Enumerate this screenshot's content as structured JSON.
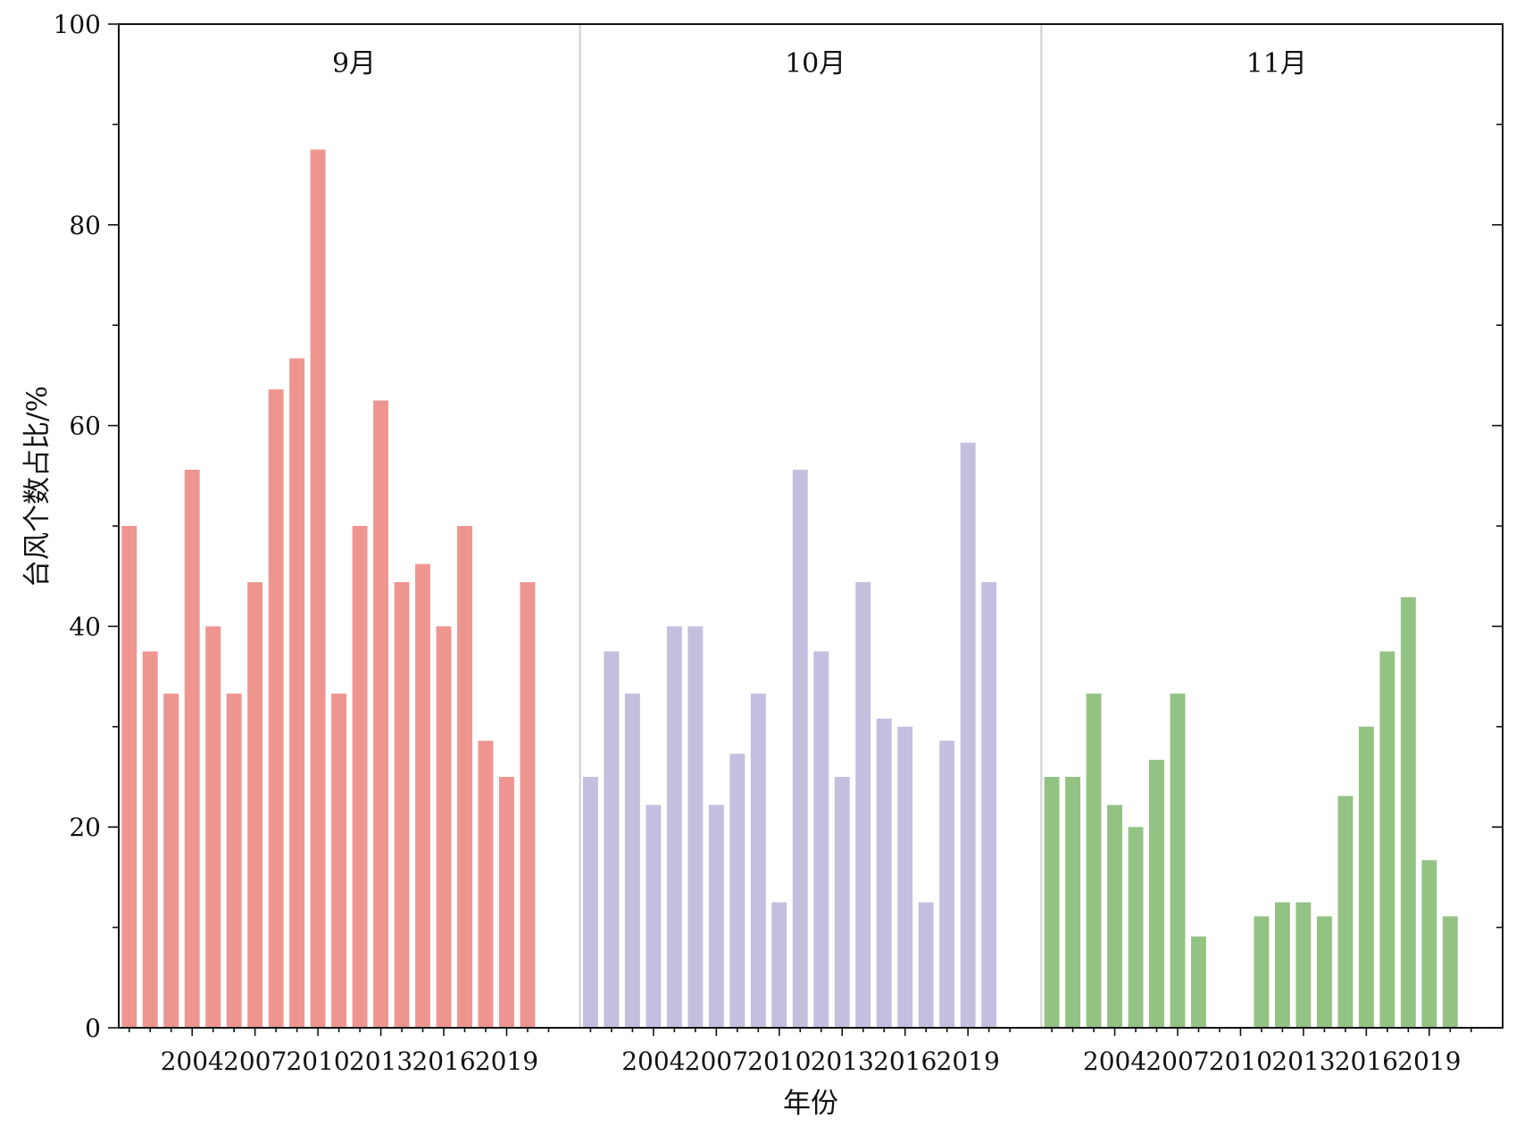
{
  "chart_data": {
    "type": "bar",
    "ylabel": "台风个数占比/%",
    "xlabel": "年份",
    "ylim": [
      0,
      100
    ],
    "yticks": [
      0,
      20,
      40,
      60,
      80,
      100
    ],
    "xticks": [
      2004,
      2007,
      2010,
      2013,
      2016,
      2019
    ],
    "x": [
      2001,
      2002,
      2003,
      2004,
      2005,
      2006,
      2007,
      2008,
      2009,
      2010,
      2011,
      2012,
      2013,
      2014,
      2015,
      2016,
      2017,
      2018,
      2019,
      2020,
      2021
    ],
    "grid": false,
    "legend": "none",
    "panels": [
      {
        "title": "9月",
        "color": "#ef9590",
        "values": [
          50,
          37.5,
          33.3,
          55.6,
          40,
          33.3,
          44.4,
          63.6,
          66.7,
          87.5,
          33.3,
          50,
          62.5,
          44.4,
          46.2,
          40,
          50,
          28.6,
          25,
          44.4,
          0
        ]
      },
      {
        "title": "10月",
        "color": "#c4bedf",
        "values": [
          25,
          37.5,
          33.3,
          22.2,
          40,
          40,
          22.2,
          27.3,
          33.3,
          12.5,
          55.6,
          37.5,
          25,
          44.4,
          30.8,
          30,
          12.5,
          28.6,
          58.3,
          44.4,
          0
        ]
      },
      {
        "title": "11月",
        "color": "#93c383",
        "values": [
          25,
          25,
          33.3,
          22.2,
          20,
          26.7,
          33.3,
          9.1,
          0,
          0,
          11.1,
          12.5,
          12.5,
          11.1,
          23.1,
          30,
          37.5,
          42.9,
          16.7,
          11.1,
          0
        ]
      }
    ]
  }
}
